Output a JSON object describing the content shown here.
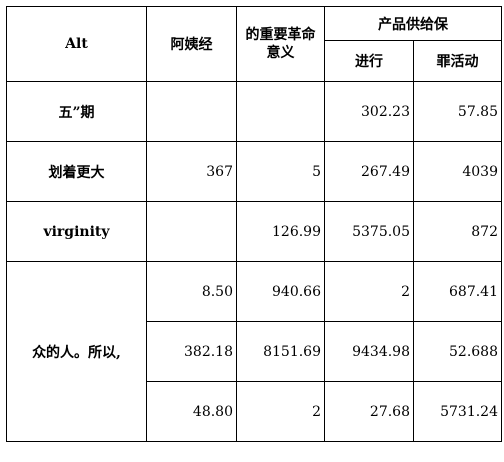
{
  "table": {
    "headers": {
      "corner": "Alt",
      "col1": "阿姨经",
      "col2": "的重要革命意义",
      "group": "产品供给保",
      "sub1": "进行",
      "sub2": "罪活动"
    },
    "rows": [
      {
        "label": "五”期",
        "c1": "",
        "c2": "",
        "c3": "302.23",
        "c4": "57.85"
      },
      {
        "label": "划着更大",
        "c1": "367",
        "c2": "5",
        "c3": "267.49",
        "c4": "4039"
      },
      {
        "label": "virginity",
        "c1": "",
        "c2": "126.99",
        "c3": "5375.05",
        "c4": "872"
      }
    ],
    "group": {
      "label": "众的人。所以,",
      "rows": [
        {
          "c1": "8.50",
          "c2": "940.66",
          "c3": "2",
          "c4": "687.41"
        },
        {
          "c1": "382.18",
          "c2": "8151.69",
          "c3": "9434.98",
          "c4": "52.688"
        },
        {
          "c1": "48.80",
          "c2": "2",
          "c3": "27.68",
          "c4": "5731.24"
        }
      ]
    }
  }
}
